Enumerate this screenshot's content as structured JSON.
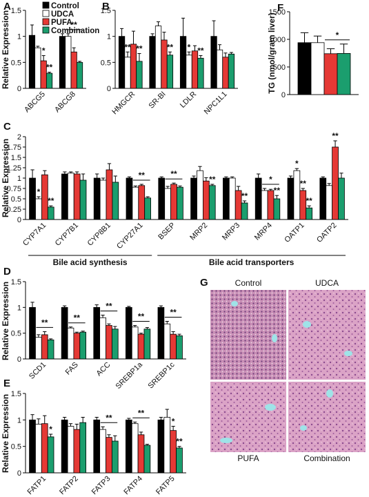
{
  "chart_data": [
    {
      "type": "bar",
      "panel": "A",
      "y_label": "Relative Expression",
      "legend": "upper right",
      "categories": [
        "ABCG5",
        "ABCG8"
      ],
      "ylim": [
        0,
        1.5
      ],
      "yticks": [
        0,
        0.5,
        1,
        1.5
      ],
      "series": [
        {
          "name": "Control",
          "color": "#000000",
          "values": [
            1.02,
            1.0
          ],
          "errors": [
            0.2,
            0.05
          ],
          "significance": [
            null,
            null
          ]
        },
        {
          "name": "UDCA",
          "color": "#ffffff",
          "values": [
            0.78,
            1.0
          ],
          "errors": [
            0.03,
            0.05
          ],
          "significance": [
            null,
            null
          ]
        },
        {
          "name": "PUFA",
          "color": "#e53935",
          "values": [
            0.53,
            0.7
          ],
          "errors": [
            0.1,
            0.08
          ],
          "significance": [
            "*",
            null
          ]
        },
        {
          "name": "Combination",
          "color": "#1b9e6e",
          "values": [
            0.29,
            0.5
          ],
          "errors": [
            0.02,
            0.02
          ],
          "significance": [
            "**",
            null
          ]
        }
      ],
      "brackets": [
        null,
        "**"
      ]
    },
    {
      "type": "bar",
      "panel": "B",
      "categories": [
        "HMGCR",
        "SR-BI",
        "LDLR",
        "NPC1L1"
      ],
      "ylim": [
        0,
        1.5
      ],
      "yticks": [
        0,
        0.5,
        1,
        1.5
      ],
      "series": [
        {
          "color": "#000000",
          "values": [
            1.0,
            1.0,
            1.0,
            1.0
          ],
          "errors": [
            0.15,
            0.05,
            0.35,
            0.3
          ],
          "significance": [
            null,
            null,
            null,
            null
          ]
        },
        {
          "color": "#ffffff",
          "values": [
            0.6,
            1.2,
            0.64,
            0.74
          ],
          "errors": [
            0.1,
            0.08,
            0.06,
            0.1
          ],
          "significance": [
            "**",
            null,
            "*",
            null
          ]
        },
        {
          "color": "#e53935",
          "values": [
            0.85,
            0.93,
            0.72,
            0.6
          ],
          "errors": [
            0.25,
            0.15,
            0.1,
            0.08
          ],
          "significance": [
            null,
            null,
            null,
            null
          ]
        },
        {
          "color": "#1b9e6e",
          "values": [
            0.52,
            0.64,
            0.58,
            0.66
          ],
          "errors": [
            0.15,
            0.06,
            0.05,
            0.03
          ],
          "significance": [
            "**",
            "**",
            "**",
            null
          ]
        }
      ],
      "brackets": [
        null,
        null,
        null,
        null
      ]
    },
    {
      "type": "bar",
      "panel": "F",
      "y_label": "TG (nmol/gram liver)",
      "categories": [
        null
      ],
      "ylim": [
        0,
        1500
      ],
      "yticks": [
        0,
        500,
        1000,
        1500
      ],
      "series": [
        {
          "color": "#000000",
          "values": [
            940
          ],
          "errors": [
            180
          ],
          "significance": [
            null
          ]
        },
        {
          "color": "#ffffff",
          "values": [
            940
          ],
          "errors": [
            120
          ],
          "significance": [
            null
          ]
        },
        {
          "color": "#e53935",
          "values": [
            740
          ],
          "errors": [
            90
          ],
          "significance": [
            null
          ]
        },
        {
          "color": "#1b9e6e",
          "values": [
            745
          ],
          "errors": [
            170
          ],
          "significance": [
            null
          ]
        }
      ],
      "brackets": [
        "*"
      ]
    },
    {
      "type": "bar",
      "panel": "C",
      "y_label": "Relative Expression",
      "categories": [
        "CYP7A1",
        "CYP7B1",
        "CYP8B1",
        "CYP27A1",
        "BSEP",
        "MRP2",
        "MRP3",
        "MRP4",
        "OATP1",
        "OATP2"
      ],
      "ylim": [
        0,
        2
      ],
      "yticks": [
        0,
        0.25,
        0.5,
        0.75,
        1,
        1.25,
        1.5,
        1.75,
        2
      ],
      "groups": [
        {
          "label": "Bile acid synthesis",
          "members": [
            "CYP7A1",
            "CYP7B1",
            "CYP8B1",
            "CYP27A1"
          ]
        },
        {
          "label": "Bile acid transporters",
          "members": [
            "BSEP",
            "MRP2",
            "MRP3",
            "MRP4",
            "OATP1",
            "OATP2"
          ]
        }
      ],
      "series": [
        {
          "color": "#000000",
          "values": [
            1.0,
            1.1,
            1.0,
            1.0,
            1.0,
            1.0,
            1.0,
            1.0,
            1.0,
            1.0
          ],
          "errors": [
            0.2,
            0.05,
            0.1,
            0.03,
            0.03,
            0.05,
            0.03,
            0.1,
            0.05,
            0.03
          ],
          "significance": [
            null,
            null,
            null,
            null,
            null,
            null,
            null,
            null,
            null,
            null
          ]
        },
        {
          "color": "#ffffff",
          "values": [
            0.5,
            1.12,
            0.95,
            0.78,
            0.75,
            1.18,
            1.0,
            0.7,
            1.18,
            0.82
          ],
          "errors": [
            0.05,
            0.03,
            0.05,
            0.03,
            0.05,
            0.1,
            0.03,
            0.05,
            0.05,
            0.05
          ],
          "significance": [
            "*",
            null,
            null,
            null,
            null,
            null,
            null,
            null,
            "*",
            null
          ]
        },
        {
          "color": "#e53935",
          "values": [
            1.08,
            1.1,
            1.2,
            0.82,
            0.85,
            0.93,
            0.7,
            0.7,
            0.7,
            1.75
          ],
          "errors": [
            0.1,
            0.05,
            0.15,
            0.03,
            0.03,
            0.08,
            0.1,
            0.03,
            0.05,
            0.15
          ],
          "significance": [
            null,
            null,
            null,
            null,
            null,
            null,
            null,
            null,
            "**",
            "**"
          ]
        },
        {
          "color": "#1b9e6e",
          "values": [
            0.3,
            0.95,
            0.9,
            0.52,
            0.78,
            0.82,
            0.4,
            0.5,
            0.28,
            1.0
          ],
          "errors": [
            0.03,
            0.15,
            0.15,
            0.03,
            0.03,
            0.03,
            0.05,
            0.08,
            0.05,
            0.12
          ],
          "significance": [
            "**",
            null,
            null,
            null,
            null,
            "**",
            "**",
            "**",
            "**",
            null
          ]
        }
      ],
      "brackets": [
        null,
        null,
        null,
        "**",
        "**",
        null,
        null,
        "*",
        null,
        null
      ]
    },
    {
      "type": "bar",
      "panel": "D",
      "y_label": "Relative Expression",
      "categories": [
        "SCD1",
        "FAS",
        "ACC",
        "SREBP1a",
        "SREBP1c"
      ],
      "ylim": [
        0,
        1.5
      ],
      "yticks": [
        0,
        0.5,
        1,
        1.5
      ],
      "series": [
        {
          "color": "#000000",
          "values": [
            1.0,
            1.0,
            1.0,
            1.0,
            1.0
          ],
          "errors": [
            0.1,
            0.03,
            0.05,
            0.02,
            0.03
          ],
          "significance": [
            null,
            null,
            null,
            null,
            null
          ]
        },
        {
          "color": "#ffffff",
          "values": [
            0.42,
            0.6,
            0.8,
            0.62,
            0.68
          ],
          "errors": [
            0.05,
            0.02,
            0.05,
            0.03,
            0.05
          ],
          "significance": [
            null,
            null,
            null,
            null,
            null
          ]
        },
        {
          "color": "#e53935",
          "values": [
            0.47,
            0.5,
            0.65,
            0.48,
            0.48
          ],
          "errors": [
            0.06,
            0.02,
            0.03,
            0.02,
            0.05
          ],
          "significance": [
            null,
            null,
            null,
            null,
            null
          ]
        },
        {
          "color": "#1b9e6e",
          "values": [
            0.37,
            0.52,
            0.58,
            0.58,
            0.45
          ],
          "errors": [
            0.02,
            0.02,
            0.05,
            0.03,
            0.03
          ],
          "significance": [
            null,
            null,
            null,
            null,
            null
          ]
        }
      ],
      "brackets": [
        "**",
        "**",
        "**",
        "**",
        "**"
      ]
    },
    {
      "type": "bar",
      "panel": "E",
      "y_label": "Relative Expression",
      "categories": [
        "FATP1",
        "FATP2",
        "FATP3",
        "FATP4",
        "FATP5"
      ],
      "ylim": [
        0,
        1.5
      ],
      "yticks": [
        0,
        0.5,
        1,
        1.5
      ],
      "series": [
        {
          "color": "#000000",
          "values": [
            1.0,
            1.0,
            1.0,
            1.0,
            1.0
          ],
          "errors": [
            0.1,
            0.05,
            0.05,
            0.03,
            0.05
          ],
          "significance": [
            null,
            null,
            null,
            null,
            null
          ]
        },
        {
          "color": "#ffffff",
          "values": [
            0.92,
            0.88,
            0.82,
            0.93,
            1.05
          ],
          "errors": [
            0.1,
            0.05,
            0.05,
            0.03,
            0.15
          ],
          "significance": [
            null,
            null,
            null,
            null,
            null
          ]
        },
        {
          "color": "#e53935",
          "values": [
            0.93,
            0.82,
            0.67,
            0.72,
            0.8
          ],
          "errors": [
            0.15,
            0.1,
            0.05,
            0.05,
            0.08
          ],
          "significance": [
            null,
            null,
            null,
            null,
            "*"
          ]
        },
        {
          "color": "#1b9e6e",
          "values": [
            0.68,
            0.95,
            0.6,
            0.52,
            0.47
          ],
          "errors": [
            0.05,
            0.1,
            0.1,
            0.02,
            0.03
          ],
          "significance": [
            "*",
            null,
            null,
            null,
            "**"
          ]
        }
      ],
      "brackets": [
        null,
        null,
        "**",
        "**",
        null
      ]
    }
  ],
  "image_panel": {
    "panel": "G",
    "labels": [
      "Control",
      "UDCA",
      "PUFA",
      "Combination"
    ]
  }
}
